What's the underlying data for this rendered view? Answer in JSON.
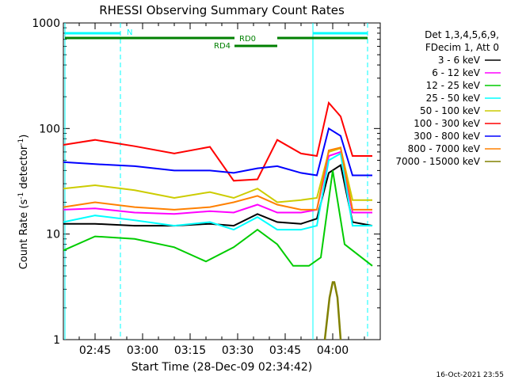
{
  "chart_data": {
    "type": "line",
    "title": "RHESSI Observing Summary Count Rates",
    "xlabel": "Start Time (28-Dec-09 02:34:42)",
    "ylabel_main": "Count Rate (s",
    "ylabel_sup1": "-1",
    "ylabel_mid": " detector",
    "ylabel_sup2": "-1",
    "ylabel_end": ")",
    "y_scale": "log",
    "ylim": [
      1,
      1000
    ],
    "x_ticks": [
      "02:45",
      "03:00",
      "03:15",
      "03:30",
      "03:45",
      "04:00"
    ],
    "y_ticks": [
      "1",
      "10",
      "100",
      "1000"
    ],
    "legend_header": [
      "Det 1,3,4,5,6,9,",
      "FDecim 1, Att 0"
    ],
    "series": [
      {
        "name": "3 - 6 keV",
        "color": "#000000",
        "points": [
          [
            0,
            12.5
          ],
          [
            40,
            12.5
          ],
          [
            90,
            12
          ],
          [
            140,
            12
          ],
          [
            185,
            12.5
          ],
          [
            215,
            12
          ],
          [
            245,
            15.5
          ],
          [
            270,
            13
          ],
          [
            300,
            12.5
          ],
          [
            320,
            14
          ],
          [
            335,
            38
          ],
          [
            350,
            45
          ],
          [
            365,
            13
          ],
          [
            390,
            12
          ]
        ]
      },
      {
        "name": "6 - 12 keV",
        "color": "#ff00ff",
        "points": [
          [
            0,
            17
          ],
          [
            40,
            17.5
          ],
          [
            90,
            16
          ],
          [
            140,
            15.5
          ],
          [
            185,
            16.5
          ],
          [
            215,
            16
          ],
          [
            245,
            19
          ],
          [
            270,
            16
          ],
          [
            300,
            16
          ],
          [
            320,
            17
          ],
          [
            335,
            55
          ],
          [
            350,
            60
          ],
          [
            365,
            16
          ],
          [
            390,
            16
          ]
        ]
      },
      {
        "name": "12 - 25 keV",
        "color": "#00cc00",
        "points": [
          [
            0,
            7
          ],
          [
            40,
            9.5
          ],
          [
            90,
            9
          ],
          [
            140,
            7.5
          ],
          [
            180,
            5.5
          ],
          [
            215,
            7.5
          ],
          [
            245,
            11
          ],
          [
            270,
            8
          ],
          [
            290,
            5
          ],
          [
            310,
            5
          ],
          [
            325,
            6
          ],
          [
            340,
            40
          ],
          [
            355,
            8
          ],
          [
            390,
            5
          ]
        ]
      },
      {
        "name": "25 - 50 keV",
        "color": "#00ffff",
        "points": [
          [
            0,
            13
          ],
          [
            40,
            15
          ],
          [
            90,
            13.5
          ],
          [
            140,
            12
          ],
          [
            185,
            13
          ],
          [
            215,
            11
          ],
          [
            245,
            14.5
          ],
          [
            270,
            11
          ],
          [
            300,
            11
          ],
          [
            320,
            12
          ],
          [
            335,
            50
          ],
          [
            350,
            58
          ],
          [
            365,
            12
          ],
          [
            390,
            12
          ]
        ]
      },
      {
        "name": "50 - 100 keV",
        "color": "#cccc00",
        "points": [
          [
            0,
            27
          ],
          [
            40,
            29
          ],
          [
            90,
            26
          ],
          [
            140,
            22
          ],
          [
            185,
            25
          ],
          [
            215,
            22
          ],
          [
            245,
            27
          ],
          [
            270,
            20
          ],
          [
            300,
            21
          ],
          [
            320,
            22
          ],
          [
            335,
            60
          ],
          [
            350,
            65
          ],
          [
            365,
            21
          ],
          [
            390,
            21
          ]
        ]
      },
      {
        "name": "100 - 300 keV",
        "color": "#ff0000",
        "points": [
          [
            0,
            70
          ],
          [
            40,
            78
          ],
          [
            90,
            68
          ],
          [
            140,
            58
          ],
          [
            185,
            67
          ],
          [
            215,
            32
          ],
          [
            245,
            33
          ],
          [
            270,
            78
          ],
          [
            300,
            58
          ],
          [
            320,
            55
          ],
          [
            335,
            175
          ],
          [
            350,
            130
          ],
          [
            365,
            55
          ],
          [
            390,
            55
          ]
        ]
      },
      {
        "name": "300 - 800 keV",
        "color": "#0000ff",
        "points": [
          [
            0,
            48
          ],
          [
            40,
            46
          ],
          [
            90,
            44
          ],
          [
            140,
            40
          ],
          [
            185,
            40
          ],
          [
            215,
            38
          ],
          [
            245,
            42
          ],
          [
            270,
            44
          ],
          [
            300,
            38
          ],
          [
            320,
            36
          ],
          [
            335,
            100
          ],
          [
            350,
            85
          ],
          [
            365,
            36
          ],
          [
            390,
            36
          ]
        ]
      },
      {
        "name": "800 - 7000 keV",
        "color": "#ff8000",
        "points": [
          [
            0,
            18
          ],
          [
            40,
            20
          ],
          [
            90,
            18
          ],
          [
            140,
            17
          ],
          [
            185,
            18
          ],
          [
            215,
            20
          ],
          [
            245,
            23
          ],
          [
            270,
            19
          ],
          [
            300,
            17
          ],
          [
            320,
            17
          ],
          [
            335,
            62
          ],
          [
            350,
            66
          ],
          [
            365,
            17
          ],
          [
            390,
            17
          ]
        ]
      },
      {
        "name": "7000 - 15000 keV",
        "color": "#808000",
        "points": [
          [
            330,
            1
          ],
          [
            336,
            2.5
          ],
          [
            340,
            3.5
          ],
          [
            342,
            3.5
          ],
          [
            346,
            2.5
          ],
          [
            350,
            1
          ]
        ]
      }
    ],
    "flags": [
      {
        "label": "N",
        "color": "#00ffff"
      },
      {
        "label": "RD0",
        "color": "#008000"
      },
      {
        "label": "RD4",
        "color": "#008000"
      }
    ],
    "footer_timestamp": "16-Oct-2021 23:55"
  }
}
